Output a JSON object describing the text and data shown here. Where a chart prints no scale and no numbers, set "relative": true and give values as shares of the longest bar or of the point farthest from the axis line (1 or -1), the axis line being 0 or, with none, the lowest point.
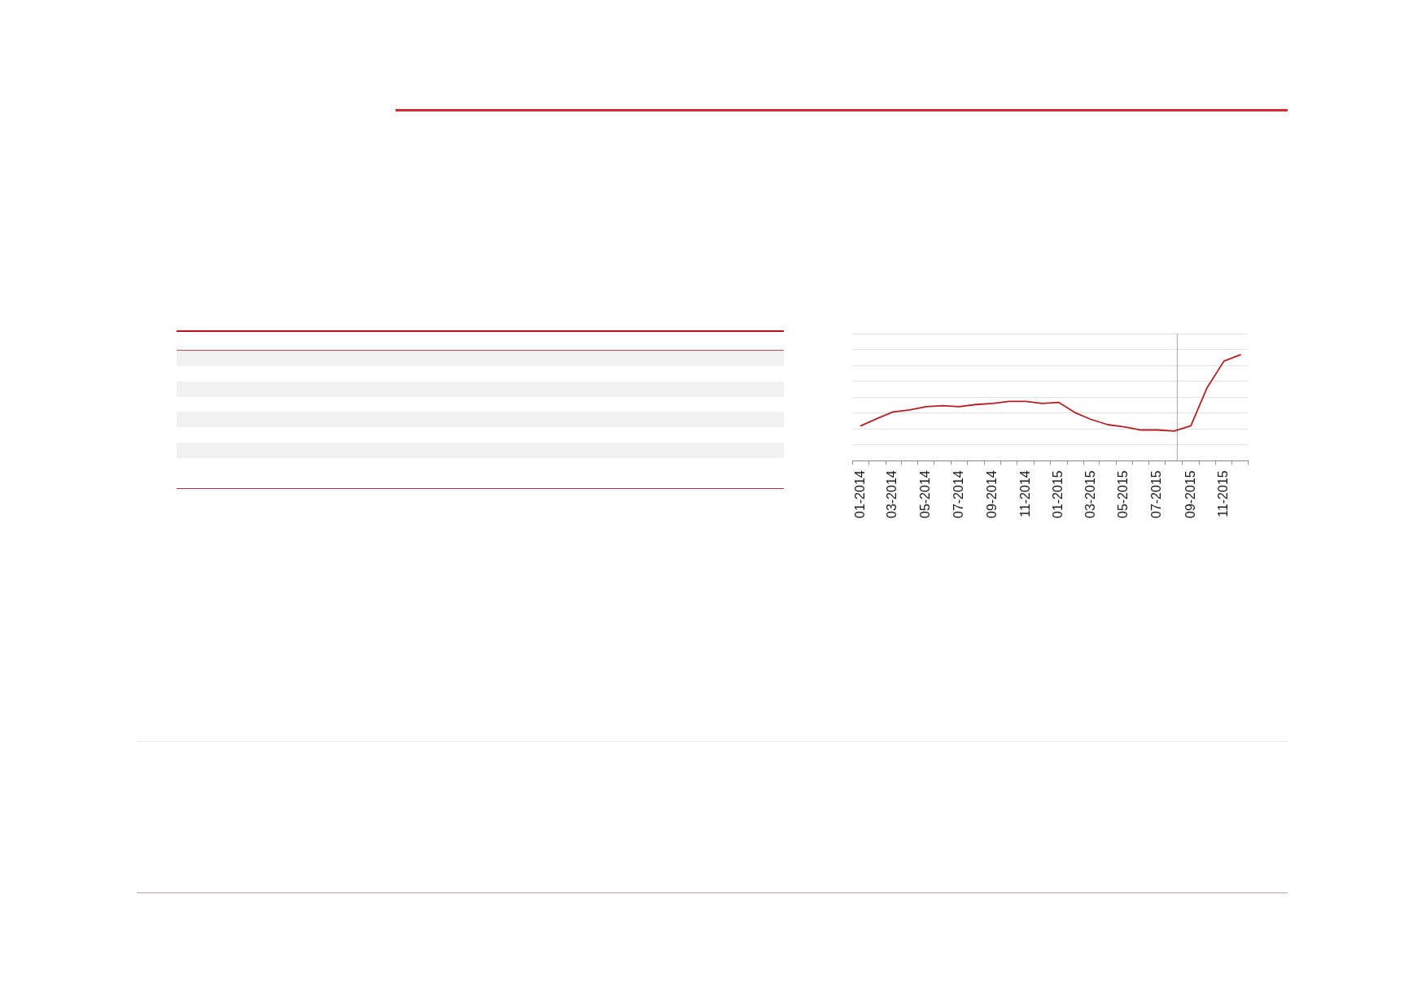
{
  "chart_data": {
    "type": "line",
    "x": [
      "2014-01",
      "2014-02",
      "2014-03",
      "2014-04",
      "2014-05",
      "2014-06",
      "2014-07",
      "2014-08",
      "2014-09",
      "2014-10",
      "2014-11",
      "2014-12",
      "2015-01",
      "2015-02",
      "2015-03",
      "2015-04",
      "2015-05",
      "2015-06",
      "2015-07",
      "2015-08",
      "2015-09",
      "2015-10",
      "2015-11",
      "2015-12"
    ],
    "series": [
      {
        "color": "#b41f24",
        "values": [
          0.33,
          0.4,
          0.46,
          0.48,
          0.51,
          0.52,
          0.51,
          0.53,
          0.54,
          0.56,
          0.56,
          0.54,
          0.55,
          0.45,
          0.39,
          0.34,
          0.32,
          0.29,
          0.29,
          0.28,
          0.33,
          0.69,
          0.94,
          1
        ]
      }
    ],
    "xlim": [
      "2013-12-16",
      "2015-12-16"
    ],
    "xticks": [
      {
        "value": "2013-12-16",
        "label": null
      },
      {
        "value": "2014-01",
        "label": "01-2014"
      },
      {
        "value": "2014-01-16",
        "label": null
      },
      {
        "value": "2014-02-16",
        "label": null
      },
      {
        "value": "2014-03",
        "label": "03-2014"
      },
      {
        "value": "2014-03-16",
        "label": null
      },
      {
        "value": "2014-04-16",
        "label": null
      },
      {
        "value": "2014-05",
        "label": "05-2014"
      },
      {
        "value": "2014-05-16",
        "label": null
      },
      {
        "value": "2014-06-16",
        "label": null
      },
      {
        "value": "2014-07",
        "label": "07-2014"
      },
      {
        "value": "2014-07-16",
        "label": null
      },
      {
        "value": "2014-08-16",
        "label": null
      },
      {
        "value": "2014-09",
        "label": "09-2014"
      },
      {
        "value": "2014-09-16",
        "label": null
      },
      {
        "value": "2014-10-16",
        "label": null
      },
      {
        "value": "2014-11",
        "label": "11-2014"
      },
      {
        "value": "2014-11-16",
        "label": null
      },
      {
        "value": "2014-12-16",
        "label": null
      },
      {
        "value": "2015-01",
        "label": "01-2015"
      },
      {
        "value": "2015-01-16",
        "label": null
      },
      {
        "value": "2015-02-16",
        "label": null
      },
      {
        "value": "2015-03",
        "label": "03-2015"
      },
      {
        "value": "2015-03-16",
        "label": null
      },
      {
        "value": "2015-04-16",
        "label": null
      },
      {
        "value": "2015-05",
        "label": "05-2015"
      },
      {
        "value": "2015-05-16",
        "label": null
      },
      {
        "value": "2015-06-16",
        "label": null
      },
      {
        "value": "2015-07",
        "label": "07-2015"
      },
      {
        "value": "2015-07-16",
        "label": null
      },
      {
        "value": "2015-08-16",
        "label": null
      },
      {
        "value": "2015-09",
        "label": "09-2015"
      },
      {
        "value": "2015-09-16",
        "label": null
      },
      {
        "value": "2015-10-16",
        "label": null
      },
      {
        "value": "2015-11",
        "label": "11-2015"
      },
      {
        "value": "2015-11-16",
        "label": null
      },
      {
        "value": "2015-12-16",
        "label": null
      }
    ],
    "relative": true,
    "grid": "y",
    "marker": "none",
    "line_style": "solid",
    "ref_lines": [
      {
        "axis": "x",
        "value": "2015-08-07",
        "color": "#b4b4b4"
      }
    ]
  }
}
